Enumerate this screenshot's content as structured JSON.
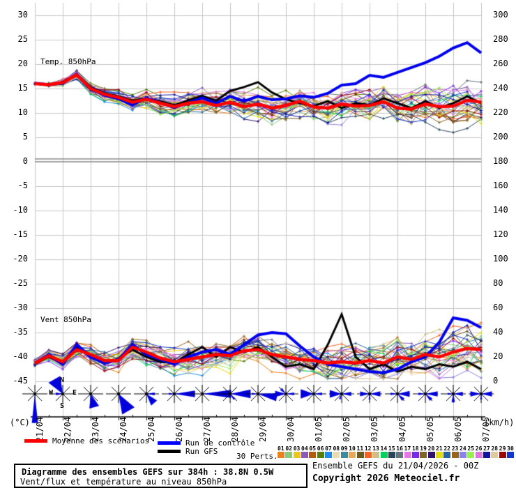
{
  "panels": {
    "temp_label": "Temp. 850hPa",
    "wind_label": "Vent 850hPa"
  },
  "axes": {
    "left": {
      "unit": "(°C)",
      "ticks": [
        30,
        25,
        20,
        15,
        10,
        5,
        0,
        -5,
        -10,
        -15,
        -20,
        -25,
        -30,
        -35,
        -40,
        -45
      ]
    },
    "right": {
      "unit": "(km/h)",
      "ticks": [
        300,
        280,
        260,
        240,
        220,
        200,
        180,
        160,
        140,
        120,
        100,
        80,
        60,
        40,
        20,
        0
      ]
    },
    "x": {
      "dates": [
        "21/04",
        "22/04",
        "23/04",
        "24/04",
        "25/04",
        "26/04",
        "27/04",
        "28/04",
        "29/04",
        "30/04",
        "01/05",
        "02/05",
        "03/05",
        "04/05",
        "05/05",
        "06/05",
        "07/05"
      ]
    }
  },
  "compass": {
    "n": "N",
    "e": "E",
    "s": "S",
    "w": "W"
  },
  "legend": {
    "mean": {
      "label": "Moyenne des scénarios",
      "color": "#ff0000"
    },
    "control": {
      "label": "Run de contrôle",
      "color": "#0000ff"
    },
    "gfs": {
      "label": "Run GFS",
      "color": "#000000"
    },
    "perts_label": "30 Perts.",
    "pert_numbers": [
      "01",
      "02",
      "03",
      "04",
      "05",
      "06",
      "07",
      "08",
      "09",
      "10",
      "11",
      "12",
      "13",
      "14",
      "15",
      "16",
      "17",
      "18",
      "19",
      "20",
      "21",
      "22",
      "23",
      "24",
      "25",
      "26",
      "27",
      "28",
      "29",
      "30"
    ],
    "pert_colors": [
      "#E8821E",
      "#8CC87A",
      "#EDC520",
      "#8A5AB4",
      "#B35A10",
      "#5A7D0A",
      "#1E8CE8",
      "#E8DCB4",
      "#3C8CA0",
      "#E8A85A",
      "#6B5A1E",
      "#F06428",
      "#D2BE82",
      "#00D25A",
      "#28465A",
      "#64737D",
      "#E878E8",
      "#7828F0",
      "#806428",
      "#32146E",
      "#E8DC0A",
      "#2864A0",
      "#96641E",
      "#8C82E8",
      "#96F050",
      "#DC78DC",
      "#14149B",
      "#DCCBA0",
      "#960A0A",
      "#1437C8"
    ]
  },
  "footer": {
    "title": "Diagramme des ensembles GEFS sur 384h : 38.8N 0.5W",
    "subtitle": "Vent/flux et température au niveau 850hPa",
    "run_info": "Ensemble GEFS du 21/04/2026 - 00Z",
    "copyright": "Copyright 2026 Meteociel.fr"
  },
  "chart_data": {
    "type": "line",
    "title": "Diagramme des ensembles GEFS sur 384h : 38.8N 0.5W",
    "x_unit": "date (every 24h, 0-384h)",
    "x_hours": [
      0,
      12,
      24,
      36,
      48,
      60,
      72,
      84,
      96,
      108,
      120,
      132,
      144,
      156,
      168,
      180,
      192,
      204,
      216,
      228,
      240,
      252,
      264,
      276,
      288,
      300,
      312,
      324,
      336,
      348,
      360,
      372,
      384
    ],
    "temp_850hPa": {
      "unit": "°C",
      "axis_range": [
        30,
        -45
      ],
      "mean": [
        16.0,
        15.8,
        16.2,
        17.8,
        15.0,
        13.8,
        13.2,
        12.2,
        12.8,
        12.0,
        11.3,
        12.0,
        12.3,
        11.5,
        12.2,
        11.3,
        11.8,
        11.0,
        11.5,
        12.4,
        11.2,
        11.0,
        11.8,
        11.4,
        11.5,
        12.3,
        11.0,
        10.8,
        11.8,
        11.3,
        11.4,
        12.6,
        12.2
      ],
      "control": [
        16.1,
        15.8,
        16.1,
        18.0,
        14.9,
        13.6,
        12.9,
        11.6,
        13.1,
        12.1,
        11.1,
        12.1,
        13.1,
        12.0,
        13.4,
        12.4,
        13.4,
        12.7,
        12.9,
        13.5,
        13.2,
        14.0,
        15.7,
        16.0,
        17.7,
        17.3,
        18.3,
        19.3,
        20.3,
        21.6,
        23.3,
        24.4,
        22.3
      ],
      "gfs": [
        16.0,
        15.7,
        16.3,
        17.9,
        15.2,
        14.0,
        13.4,
        12.5,
        13.0,
        12.4,
        11.6,
        12.6,
        13.5,
        12.5,
        14.5,
        15.3,
        16.3,
        14.2,
        12.8,
        12.0,
        11.4,
        12.4,
        11.0,
        12.0,
        11.6,
        13.0,
        12.0,
        11.0,
        12.4,
        11.0,
        12.0,
        13.4,
        12.0
      ],
      "member_spread": [
        0.2,
        0.5,
        0.8,
        1.0,
        1.2,
        1.4,
        1.6,
        1.8,
        2.0,
        2.1,
        2.2,
        2.3,
        2.4,
        2.5,
        2.6,
        2.6,
        2.7,
        2.8,
        2.8,
        2.9,
        3.0,
        3.0,
        3.1,
        3.2,
        3.3,
        3.4,
        3.5,
        3.6,
        3.7,
        3.8,
        3.9,
        4.0,
        4.1
      ]
    },
    "wind_850hPa": {
      "unit": "km/h",
      "axis_range": [
        0,
        300
      ],
      "mean": [
        15,
        21,
        16,
        26,
        22,
        17,
        17,
        28,
        24,
        19,
        16,
        18,
        20,
        22,
        21,
        25,
        26,
        22,
        20,
        18,
        17,
        15,
        16,
        15,
        17,
        15,
        20,
        18,
        22,
        20,
        24,
        27,
        26
      ],
      "control": [
        15,
        22,
        14,
        30,
        20,
        15,
        18,
        30,
        22,
        18,
        14,
        20,
        24,
        26,
        22,
        30,
        38,
        40,
        39,
        29,
        20,
        14,
        12,
        10,
        8,
        7,
        10,
        16,
        20,
        32,
        52,
        50,
        44
      ],
      "gfs": [
        15,
        20,
        15,
        28,
        22,
        16,
        18,
        26,
        20,
        16,
        15,
        22,
        28,
        20,
        28,
        24,
        28,
        20,
        12,
        14,
        10,
        30,
        55,
        20,
        10,
        14,
        8,
        12,
        10,
        14,
        12,
        16,
        10
      ],
      "member_spread": [
        3,
        5,
        6,
        7,
        8,
        8,
        9,
        9,
        10,
        10,
        10,
        11,
        11,
        11,
        12,
        12,
        12,
        13,
        13,
        13,
        13,
        14,
        14,
        14,
        15,
        15,
        15,
        16,
        16,
        17,
        17,
        18,
        18
      ]
    },
    "wind_roses": [
      {
        "date": "21/04",
        "lobes": [
          [
            180,
            42,
            6
          ]
        ]
      },
      {
        "date": "22/04",
        "lobes": [
          [
            330,
            26,
            22
          ],
          [
            270,
            10,
            12
          ]
        ]
      },
      {
        "date": "23/04",
        "lobes": [
          [
            165,
            21,
            20
          ]
        ]
      },
      {
        "date": "24/04",
        "lobes": [
          [
            150,
            30,
            20
          ]
        ]
      },
      {
        "date": "25/04",
        "lobes": [
          [
            140,
            18,
            18
          ],
          [
            90,
            12,
            10
          ]
        ]
      },
      {
        "date": "26/04",
        "lobes": [
          [
            90,
            30,
            9
          ],
          [
            270,
            8,
            10
          ]
        ]
      },
      {
        "date": "27/04",
        "lobes": [
          [
            90,
            42,
            8
          ]
        ]
      },
      {
        "date": "28/04",
        "lobes": [
          [
            90,
            30,
            12
          ],
          [
            140,
            10,
            10
          ]
        ]
      },
      {
        "date": "29/04",
        "lobes": [
          [
            100,
            28,
            12
          ],
          [
            270,
            9,
            10
          ]
        ]
      },
      {
        "date": "30/04",
        "lobes": [
          [
            270,
            16,
            16
          ],
          [
            90,
            12,
            10
          ],
          [
            315,
            10,
            12
          ]
        ]
      },
      {
        "date": "01/05",
        "lobes": [
          [
            270,
            20,
            20
          ],
          [
            90,
            12,
            10
          ]
        ]
      },
      {
        "date": "02/05",
        "lobes": [
          [
            270,
            18,
            18
          ],
          [
            90,
            14,
            12
          ],
          [
            200,
            8,
            10
          ]
        ]
      },
      {
        "date": "03/05",
        "lobes": [
          [
            90,
            16,
            14
          ],
          [
            270,
            14,
            14
          ],
          [
            180,
            8,
            10
          ]
        ]
      },
      {
        "date": "04/05",
        "lobes": [
          [
            90,
            18,
            14
          ],
          [
            270,
            10,
            10
          ],
          [
            135,
            12,
            12
          ]
        ]
      },
      {
        "date": "05/05",
        "lobes": [
          [
            90,
            18,
            12
          ],
          [
            135,
            12,
            12
          ],
          [
            270,
            10,
            10
          ]
        ]
      },
      {
        "date": "06/05",
        "lobes": [
          [
            90,
            14,
            12
          ],
          [
            180,
            12,
            12
          ],
          [
            270,
            8,
            10
          ]
        ]
      },
      {
        "date": "07/05",
        "lobes": [
          [
            90,
            16,
            14
          ],
          [
            270,
            16,
            14
          ],
          [
            180,
            8,
            10
          ]
        ]
      }
    ],
    "legend_position": "bottom",
    "grid": true
  }
}
